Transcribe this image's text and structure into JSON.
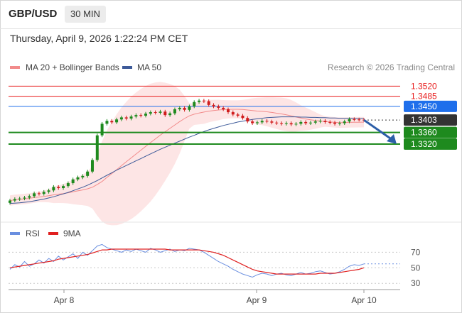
{
  "header": {
    "pair": "GBP/USD",
    "timeframe": "30 MIN"
  },
  "date_line": "Thursday, April 9, 2026 1:22:24 PM CET",
  "copyright": "Research © 2026 Trading Central",
  "colors": {
    "bollinger": "#f28b8b",
    "ma50": "#3d5a99",
    "support": "#1e8a1e",
    "resistance_red": "#e81d1d",
    "resistance_blue": "#1f6feb",
    "rsi": "#6a8fe0",
    "rsi_ma": "#e02020",
    "current": "#333333"
  },
  "chart_data": [
    {
      "type": "candlestick",
      "legend": [
        "MA 20 + Bollinger Bands",
        "MA 50"
      ],
      "legend_placement": "top-left",
      "ylim": [
        1.307,
        1.356
      ],
      "x_labels": [
        "Apr 8",
        "Apr 9",
        "Apr 10"
      ],
      "levels": [
        {
          "value": 1.352,
          "label": "1.3520",
          "kind": "resistance-red"
        },
        {
          "value": 1.3485,
          "label": "1.3485",
          "kind": "resistance-red"
        },
        {
          "value": 1.345,
          "label": "1.3450",
          "kind": "resistance-blue"
        },
        {
          "value": 1.3403,
          "label": "1.3403",
          "kind": "current"
        },
        {
          "value": 1.336,
          "label": "1.3360",
          "kind": "support"
        },
        {
          "value": 1.332,
          "label": "1.3320",
          "kind": "support"
        }
      ],
      "close": [
        1.3125,
        1.313,
        1.3132,
        1.3135,
        1.314,
        1.315,
        1.3148,
        1.3155,
        1.316,
        1.3172,
        1.3168,
        1.3175,
        1.3185,
        1.3198,
        1.3205,
        1.321,
        1.3225,
        1.3265,
        1.335,
        1.339,
        1.34,
        1.3395,
        1.3405,
        1.3412,
        1.3408,
        1.3415,
        1.342,
        1.3418,
        1.3425,
        1.343,
        1.3428,
        1.3432,
        1.342,
        1.3426,
        1.344,
        1.3445,
        1.3438,
        1.345,
        1.3465,
        1.347,
        1.3468,
        1.3455,
        1.345,
        1.3445,
        1.344,
        1.343,
        1.3422,
        1.3418,
        1.341,
        1.3398,
        1.3392,
        1.3395,
        1.34,
        1.3398,
        1.3394,
        1.3392,
        1.339,
        1.3392,
        1.3388,
        1.339,
        1.3396,
        1.3392,
        1.3394,
        1.3398,
        1.34,
        1.3396,
        1.3394,
        1.339,
        1.3392,
        1.3398,
        1.3406,
        1.3405,
        1.3404,
        1.3403
      ],
      "ma50": [
        1.3115,
        1.3116,
        1.3117,
        1.3119,
        1.3121,
        1.3124,
        1.3127,
        1.313,
        1.3134,
        1.3138,
        1.3143,
        1.3148,
        1.3153,
        1.3159,
        1.3165,
        1.3171,
        1.3178,
        1.3186,
        1.3194,
        1.3203,
        1.3212,
        1.3221,
        1.323,
        1.3238,
        1.3246,
        1.3254,
        1.3262,
        1.327,
        1.3278,
        1.3286,
        1.3294,
        1.3302,
        1.3309,
        1.3316,
        1.3323,
        1.333,
        1.3337,
        1.3344,
        1.335,
        1.3357,
        1.3363,
        1.3369,
        1.3374,
        1.3379,
        1.3384,
        1.3388,
        1.3392,
        1.3396,
        1.3399,
        1.3402,
        1.3405,
        1.3407,
        1.3409,
        1.3411,
        1.3412,
        1.3413,
        1.3414,
        1.3414,
        1.3414,
        1.3414,
        1.3413,
        1.3413,
        1.3412,
        1.3412,
        1.3411,
        1.3411,
        1.341,
        1.341,
        1.3409,
        1.3409,
        1.3409,
        1.3408,
        1.3408,
        1.3408
      ],
      "arrow": {
        "from": 1.3403,
        "to": 1.332
      }
    },
    {
      "type": "line",
      "legend": [
        "RSI",
        "9MA"
      ],
      "legend_placement": "top-left",
      "ylim": [
        22,
        84
      ],
      "y_ticks": [
        70,
        50,
        30
      ],
      "rsi": [
        48,
        54,
        51,
        58,
        52,
        55,
        60,
        56,
        62,
        58,
        65,
        60,
        64,
        68,
        62,
        70,
        66,
        72,
        78,
        80,
        76,
        74,
        72,
        70,
        73,
        71,
        74,
        72,
        70,
        75,
        73,
        70,
        72,
        74,
        71,
        73,
        72,
        75,
        74,
        73,
        70,
        66,
        62,
        58,
        55,
        52,
        48,
        45,
        42,
        40,
        38,
        41,
        43,
        42,
        40,
        42,
        43,
        41,
        40,
        42,
        44,
        42,
        43,
        45,
        46,
        44,
        42,
        43,
        45,
        48,
        52,
        54,
        53,
        55
      ],
      "rsi_ma": [
        50,
        51,
        52,
        53,
        54,
        55,
        56,
        57,
        58,
        59,
        61,
        62,
        63,
        64,
        65,
        66,
        67,
        69,
        71,
        73,
        73,
        74,
        74,
        74,
        74,
        74,
        74,
        74,
        74,
        74,
        74,
        74,
        74,
        73,
        73,
        73,
        73,
        73,
        73,
        73,
        72,
        71,
        70,
        68,
        66,
        63,
        60,
        57,
        54,
        51,
        48,
        46,
        45,
        44,
        43,
        42,
        42,
        42,
        42,
        42,
        42,
        42,
        42,
        42,
        43,
        43,
        43,
        43,
        44,
        45,
        46,
        47,
        48,
        50
      ]
    }
  ]
}
